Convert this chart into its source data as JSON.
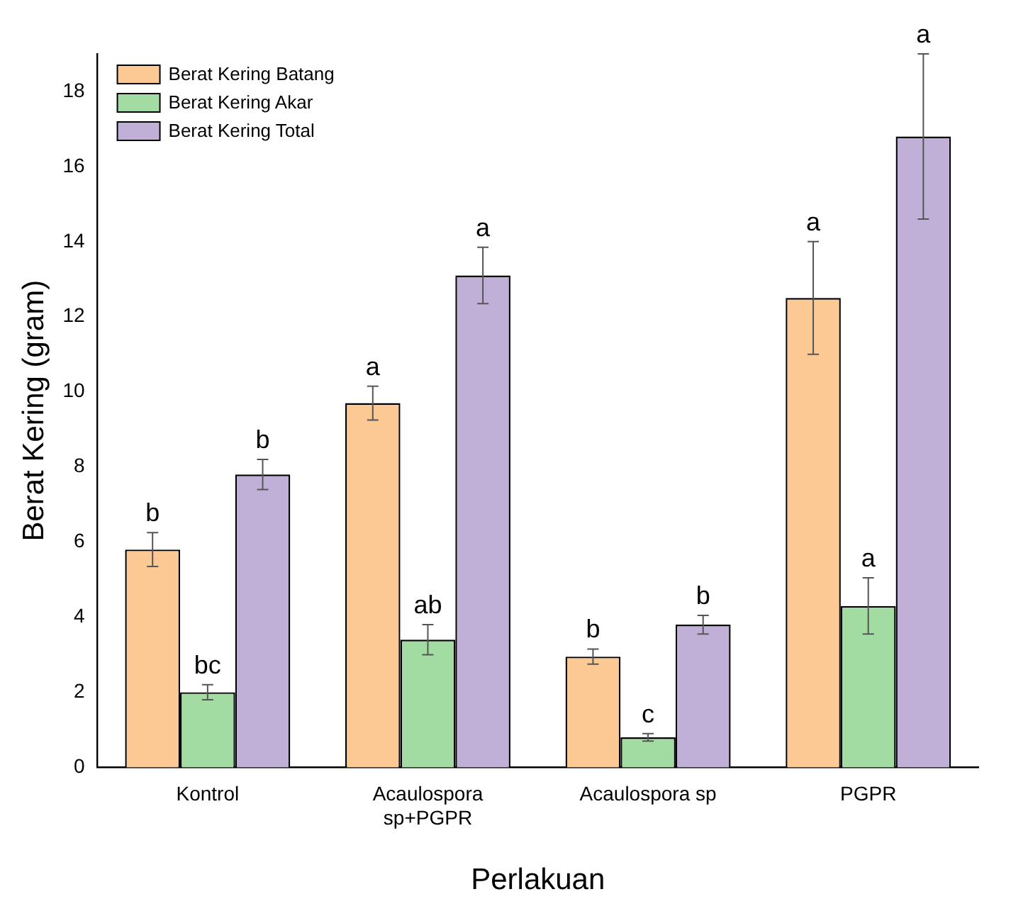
{
  "chart_data": {
    "type": "bar",
    "xlabel": "Perlakuan",
    "ylabel": "Berat Kering (gram)",
    "categories": [
      "Kontrol",
      "Acaulospora sp+PGPR",
      "Acaulospora sp",
      "PGPR"
    ],
    "series": [
      {
        "name": "Berat Kering Batang",
        "color": "#fcc894",
        "values": [
          5.8,
          9.7,
          2.95,
          12.5
        ],
        "errors": [
          0.45,
          0.45,
          0.2,
          1.5
        ]
      },
      {
        "name": "Berat Kering Akar",
        "color": "#a3dca3",
        "values": [
          2.0,
          3.4,
          0.8,
          4.3
        ],
        "errors": [
          0.2,
          0.4,
          0.1,
          0.75
        ]
      },
      {
        "name": "Berat Kering Total",
        "color": "#c0b0d8",
        "values": [
          7.8,
          13.1,
          3.8,
          16.8
        ],
        "errors": [
          0.4,
          0.75,
          0.25,
          2.2
        ]
      }
    ],
    "annotations": [
      "b",
      "bc",
      "b",
      "a",
      "ab",
      "a",
      "b",
      "c",
      "b",
      "a",
      "a",
      "a"
    ],
    "ylim": [
      0,
      19
    ],
    "yticks": [
      0,
      2,
      4,
      6,
      8,
      10,
      12,
      14,
      16,
      18
    ],
    "grid": false,
    "legend": "top left"
  }
}
